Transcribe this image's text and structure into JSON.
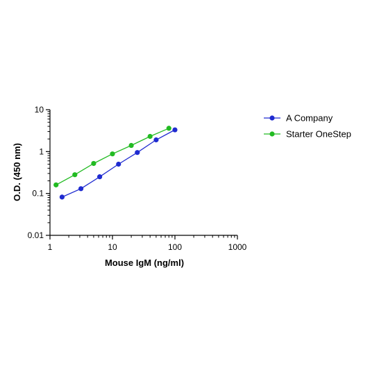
{
  "chart_data": {
    "type": "line",
    "x_scale": "log",
    "y_scale": "log",
    "xlabel": "Mouse IgM (ng/ml)",
    "ylabel": "O.D. (450 nm)",
    "xlim": [
      1,
      1000
    ],
    "ylim": [
      0.01,
      10
    ],
    "x_ticks": [
      1,
      10,
      100,
      1000
    ],
    "x_tick_labels": [
      "1",
      "10",
      "100",
      "1000"
    ],
    "y_ticks": [
      0.01,
      0.1,
      1,
      10
    ],
    "y_tick_labels": [
      "0.01",
      "0.1",
      "1",
      "10"
    ],
    "grid": false,
    "legend_position": "right",
    "series": [
      {
        "name": "A Company",
        "color": "#1f2bd0",
        "x": [
          1.56,
          3.13,
          6.25,
          12.5,
          25,
          50,
          100
        ],
        "y": [
          0.082,
          0.13,
          0.25,
          0.5,
          0.95,
          1.9,
          3.3
        ]
      },
      {
        "name": "Starter OneStep",
        "color": "#22bb22",
        "x": [
          1.25,
          2.5,
          5,
          10,
          20,
          40,
          80
        ],
        "y": [
          0.16,
          0.28,
          0.52,
          0.88,
          1.4,
          2.3,
          3.6
        ]
      }
    ]
  }
}
